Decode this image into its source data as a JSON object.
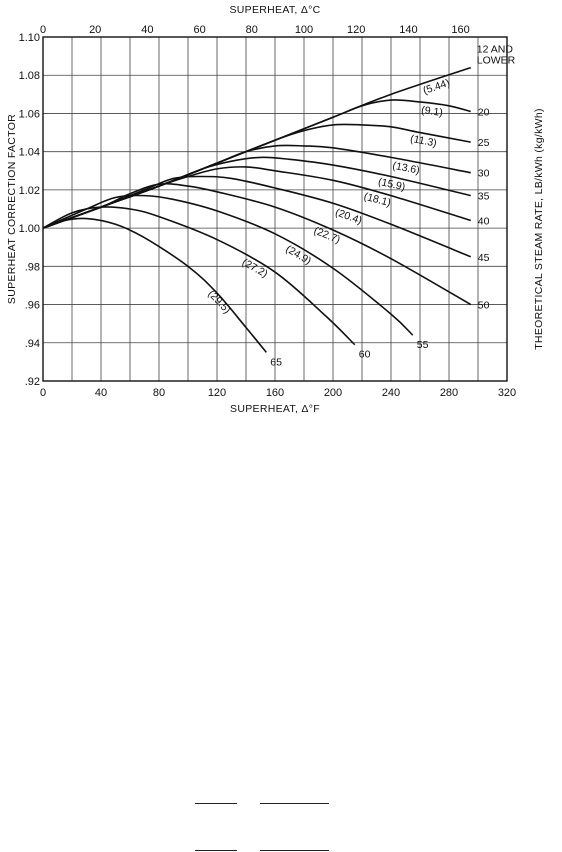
{
  "chart_data": {
    "type": "line",
    "xlabel": "SUPERHEAT, Δ°F",
    "x2label": "SUPERHEAT, Δ°C",
    "ylabel": "SUPERHEAT CORRECTION FACTOR",
    "y2label": "THEORETICAL STEAM RATE, LB/kWh (kg/kWh)",
    "xlim": [
      0,
      320
    ],
    "x2lim": [
      0,
      177.78
    ],
    "ylim": [
      0.92,
      1.1
    ],
    "grid": true,
    "x_ticks": [
      "0",
      "40",
      "80",
      "120",
      "160",
      "200",
      "240",
      "280",
      "320"
    ],
    "x2_ticks": [
      "0",
      "20",
      "40",
      "60",
      "80",
      "100",
      "120",
      "140",
      "160"
    ],
    "y_ticks": [
      ".92",
      ".94",
      ".96",
      ".98",
      "1.00",
      "1.02",
      "1.04",
      "1.06",
      "1.08",
      "1.10"
    ],
    "series": [
      {
        "name": "12 AND LOWER",
        "label2": "",
        "kglabel": "(5.44)",
        "points": [
          [
            0,
            1.0
          ],
          [
            40,
            1.011
          ],
          [
            80,
            1.022
          ],
          [
            120,
            1.034
          ],
          [
            160,
            1.046
          ],
          [
            200,
            1.058
          ],
          [
            240,
            1.07
          ],
          [
            295,
            1.084
          ]
        ]
      },
      {
        "name": "20",
        "label2": "",
        "kglabel": "(9.1)",
        "points": [
          [
            0,
            1.0
          ],
          [
            40,
            1.011
          ],
          [
            80,
            1.022
          ],
          [
            120,
            1.034
          ],
          [
            160,
            1.046
          ],
          [
            200,
            1.058
          ],
          [
            220,
            1.064
          ],
          [
            240,
            1.067
          ],
          [
            260,
            1.066
          ],
          [
            280,
            1.064
          ],
          [
            295,
            1.061
          ]
        ]
      },
      {
        "name": "25",
        "label2": "",
        "kglabel": "(11.3)",
        "points": [
          [
            0,
            1.0
          ],
          [
            40,
            1.011
          ],
          [
            80,
            1.022
          ],
          [
            120,
            1.034
          ],
          [
            160,
            1.046
          ],
          [
            180,
            1.051
          ],
          [
            200,
            1.054
          ],
          [
            220,
            1.054
          ],
          [
            240,
            1.053
          ],
          [
            260,
            1.05
          ],
          [
            295,
            1.045
          ]
        ]
      },
      {
        "name": "30",
        "label2": "",
        "kglabel": "(13.6)",
        "points": [
          [
            0,
            1.0
          ],
          [
            40,
            1.011
          ],
          [
            80,
            1.022
          ],
          [
            120,
            1.034
          ],
          [
            140,
            1.04
          ],
          [
            160,
            1.043
          ],
          [
            180,
            1.043
          ],
          [
            200,
            1.042
          ],
          [
            240,
            1.037
          ],
          [
            295,
            1.029
          ]
        ]
      },
      {
        "name": "35",
        "label2": "",
        "kglabel": "(15.9)",
        "points": [
          [
            0,
            1.0
          ],
          [
            40,
            1.011
          ],
          [
            80,
            1.022
          ],
          [
            110,
            1.031
          ],
          [
            130,
            1.035
          ],
          [
            150,
            1.037
          ],
          [
            170,
            1.036
          ],
          [
            200,
            1.033
          ],
          [
            240,
            1.027
          ],
          [
            295,
            1.017
          ]
        ]
      },
      {
        "name": "40",
        "label2": "",
        "kglabel": "(18.1)",
        "points": [
          [
            0,
            1.0
          ],
          [
            40,
            1.011
          ],
          [
            80,
            1.022
          ],
          [
            100,
            1.027
          ],
          [
            120,
            1.031
          ],
          [
            140,
            1.032
          ],
          [
            160,
            1.03
          ],
          [
            200,
            1.025
          ],
          [
            240,
            1.017
          ],
          [
            295,
            1.004
          ]
        ]
      },
      {
        "name": "45",
        "label2": "",
        "kglabel": "(20.4)",
        "points": [
          [
            0,
            1.0
          ],
          [
            40,
            1.011
          ],
          [
            70,
            1.02
          ],
          [
            90,
            1.026
          ],
          [
            110,
            1.027
          ],
          [
            130,
            1.026
          ],
          [
            160,
            1.021
          ],
          [
            200,
            1.013
          ],
          [
            240,
            1.002
          ],
          [
            295,
            0.985
          ]
        ]
      },
      {
        "name": "50",
        "label2": "",
        "kglabel": "(22.7)",
        "points": [
          [
            0,
            1.0
          ],
          [
            40,
            1.011
          ],
          [
            60,
            1.018
          ],
          [
            80,
            1.023
          ],
          [
            100,
            1.022
          ],
          [
            120,
            1.019
          ],
          [
            160,
            1.011
          ],
          [
            200,
            0.999
          ],
          [
            240,
            0.984
          ],
          [
            295,
            0.96
          ]
        ]
      },
      {
        "name": "55",
        "label2": "",
        "kglabel": "(24.9)",
        "points": [
          [
            0,
            1.0
          ],
          [
            30,
            1.01
          ],
          [
            50,
            1.016
          ],
          [
            70,
            1.017
          ],
          [
            90,
            1.015
          ],
          [
            120,
            1.009
          ],
          [
            160,
            0.997
          ],
          [
            200,
            0.979
          ],
          [
            240,
            0.955
          ],
          [
            255,
            0.944
          ]
        ]
      },
      {
        "name": "60",
        "label2": "",
        "kglabel": "(27.2)",
        "points": [
          [
            0,
            1.0
          ],
          [
            20,
            1.008
          ],
          [
            40,
            1.011
          ],
          [
            60,
            1.01
          ],
          [
            80,
            1.006
          ],
          [
            120,
            0.994
          ],
          [
            160,
            0.977
          ],
          [
            195,
            0.954
          ],
          [
            215,
            0.939
          ]
        ]
      },
      {
        "name": "65",
        "label2": "",
        "kglabel": "(29.5)",
        "points": [
          [
            0,
            1.0
          ],
          [
            15,
            1.004
          ],
          [
            30,
            1.005
          ],
          [
            50,
            1.002
          ],
          [
            70,
            0.995
          ],
          [
            100,
            0.98
          ],
          [
            120,
            0.966
          ],
          [
            140,
            0.948
          ],
          [
            154,
            0.935
          ]
        ]
      }
    ]
  }
}
